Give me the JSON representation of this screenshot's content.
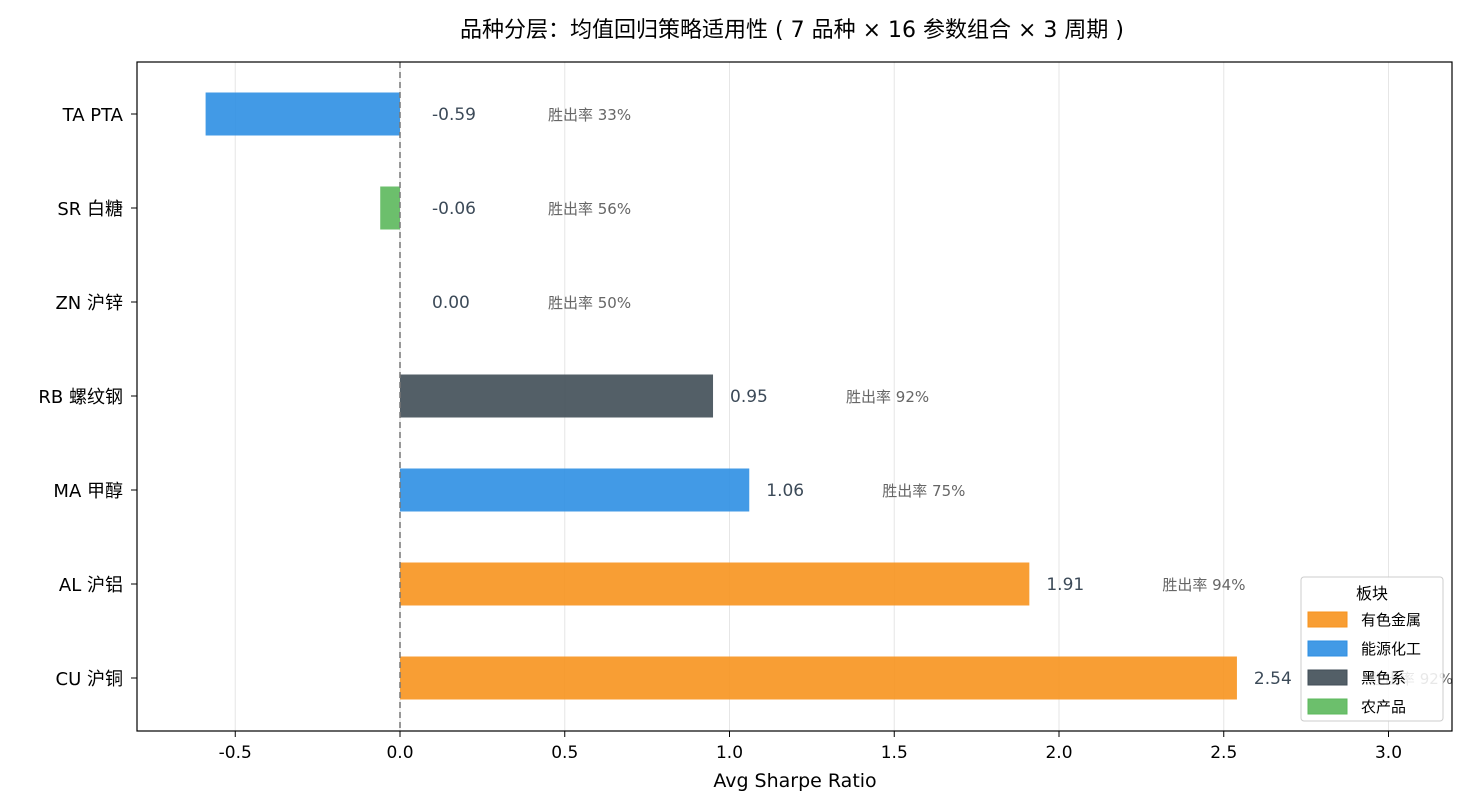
{
  "chart_data": {
    "type": "bar",
    "orientation": "horizontal",
    "title": "品种分层：均值回归策略适用性 ( 7 品种 × 16 参数组合 × 3 周期 )",
    "xlabel": "Avg Sharpe Ratio",
    "ylabel": "",
    "xlim": [
      -0.8,
      3.2
    ],
    "xticks": [
      "-0.5",
      "0.0",
      "0.5",
      "1.0",
      "1.5",
      "2.0",
      "2.5",
      "3.0"
    ],
    "xtick_values": [
      -0.5,
      0.0,
      0.5,
      1.0,
      1.5,
      2.0,
      2.5,
      3.0
    ],
    "grid": "vertical",
    "zero_line": "dashed",
    "categories": [
      "CU 沪铜",
      "AL 沪铝",
      "MA 甲醇",
      "RB 螺纹钢",
      "ZN 沪锌",
      "SR 白糖",
      "TA PTA"
    ],
    "values": [
      2.54,
      1.91,
      1.06,
      0.95,
      0.0,
      -0.06,
      -0.59
    ],
    "value_labels": [
      "2.54",
      "1.91",
      "1.06",
      "0.95",
      "0.00",
      "-0.06",
      "-0.59"
    ],
    "win_rate_labels": [
      "胜出率 92%",
      "胜出率 94%",
      "胜出率 75%",
      "胜出率 92%",
      "胜出率 50%",
      "胜出率 56%",
      "胜出率 33%"
    ],
    "sectors": [
      "有色金属",
      "有色金属",
      "能源化工",
      "黑色系",
      "有色金属",
      "农产品",
      "能源化工"
    ],
    "legend": {
      "title": "板块",
      "placement": "lower-right",
      "items": [
        {
          "label": "有色金属",
          "color": "#f7931e"
        },
        {
          "label": "能源化工",
          "color": "#2d8fe3"
        },
        {
          "label": "黑色系",
          "color": "#404e57"
        },
        {
          "label": "农产品",
          "color": "#5cb85c"
        }
      ]
    }
  }
}
